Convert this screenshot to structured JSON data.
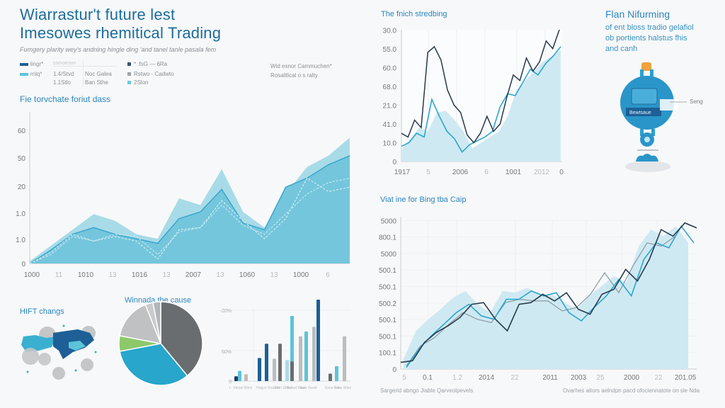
{
  "header": {
    "title_line1": "Wiarrastur't future lest",
    "title_line2": "Imesowes rhemitical Trading",
    "subtitle": "Fumgery plarity wey's andning hingle ding 'and tanel tanle pasala fem"
  },
  "legend": {
    "series": [
      {
        "label": "lingr*",
        "color": "#1d5f96"
      },
      {
        "label": "rnlq*",
        "color": "#5cc4d8"
      }
    ],
    "table_header": "ssmoeoon",
    "table_rows": [
      [
        "1.4/Stvd",
        "Noc Galea"
      ],
      [
        "1.1Stlo",
        "Ban Sthe"
      ]
    ],
    "markers": [
      {
        "label": "* .fsG — 6Ra",
        "color": "#3b5468"
      },
      {
        "label": "Rstwo - Cadwto",
        "color": "#9ea3a8"
      },
      {
        "label": "2Slon",
        "color": "#6ccbe0"
      }
    ],
    "notes": [
      "Wid esnor Cammuchen*",
      "Rosaltlical o s ralty"
    ]
  },
  "main_chart_title": "Fie torvchate foriut dass",
  "line_chart_1_title": "The fnich stredbing",
  "right_panel": {
    "title": "Flan Nifurming",
    "body_line1": "of ent bloss tradio gelafiol",
    "body_line2": "ob portients halstus fhis",
    "body_line3": "and canh",
    "device_label": "Bewtsaue",
    "callout_label": "Seng"
  },
  "line_chart_2_title": "Viat ine for Bing tba Caip",
  "map_title": "HIFT changs",
  "pie_title": "Winnada the cause",
  "footer": {
    "left_note": "Sargerid abngo Jiable Qarveolpevels",
    "right_note": "Ovarhes aitors aelndpn pacd ofociennatote on sle Nda"
  },
  "colors": {
    "accent": "#2a86bf",
    "dark_navy": "#1d3d5c",
    "teal": "#3ab0d0",
    "light_teal": "#a8dbe8",
    "gray": "#6a6d70"
  },
  "chart_data": [
    {
      "id": "area",
      "type": "area",
      "title": "Fie torvchate foriut dass",
      "xlabel": "",
      "ylabel": "",
      "x_tick_labels": [
        "1000",
        "11",
        "1010",
        "13",
        "1016",
        "13",
        "2007",
        "13",
        "1060",
        "13",
        "1000",
        "6"
      ],
      "y_tick_labels": [
        "0",
        "1.0",
        "1.0",
        "20",
        "50",
        "60"
      ],
      "ylim": [
        0,
        70
      ],
      "grid": false,
      "series": [
        {
          "name": "upper band",
          "values": [
            1,
            8,
            15,
            22,
            19,
            13,
            11,
            29,
            26,
            42,
            23,
            16,
            31,
            43,
            48,
            56
          ]
        },
        {
          "name": "main",
          "values": [
            0,
            6,
            13,
            16,
            13,
            11,
            9,
            20,
            23,
            33,
            18,
            15,
            34,
            38,
            44,
            48
          ]
        },
        {
          "name": "dashed a",
          "values": [
            0,
            5,
            13,
            10,
            12,
            10,
            2,
            15,
            16,
            28,
            19,
            11,
            20,
            38,
            32,
            34
          ]
        },
        {
          "name": "dashed b",
          "values": [
            0,
            4,
            12,
            10,
            13,
            12,
            4,
            14,
            16,
            26,
            17,
            13,
            22,
            31,
            36,
            38
          ]
        }
      ]
    },
    {
      "id": "line1",
      "type": "line",
      "title": "The fnich stredbing",
      "x_tick_labels": [
        "1917",
        "5",
        "2006",
        "6",
        "1001",
        "2012",
        "0"
      ],
      "y_tick_labels": [
        "0",
        "10.0",
        "41.0",
        "21.0",
        "68.0",
        "60.0",
        "55.0",
        "30.0"
      ],
      "ylim": [
        0,
        7
      ],
      "grid": true,
      "series": [
        {
          "name": "dark",
          "values": [
            1.5,
            1.3,
            2.2,
            1.8,
            5.8,
            6.1,
            5.4,
            3.8,
            3.0,
            2.6,
            1.4,
            1.0,
            1.5,
            2.4,
            1.6,
            2.0,
            3.4,
            4.6,
            4.3,
            5.5,
            4.8,
            5.3,
            6.4,
            6.0,
            7.0
          ]
        },
        {
          "name": "teal",
          "values": [
            0.8,
            1.0,
            1.5,
            1.3,
            3.3,
            2.4,
            1.6,
            1.2,
            0.5,
            0.9,
            1.1,
            1.3,
            1.6,
            2.9,
            3.6,
            3.5,
            4.2,
            4.9,
            4.6,
            5.2,
            5.6,
            6.1
          ]
        },
        {
          "name": "light",
          "values": [
            0.6,
            1.2,
            1.8,
            1.6,
            2.6,
            2.7,
            2.2,
            1.6,
            0.7,
            1.0,
            1.3,
            1.6,
            2.4,
            3.8,
            4.3,
            4.8,
            5.3,
            5.6,
            5.9
          ]
        }
      ]
    },
    {
      "id": "line2",
      "type": "line",
      "title": "Viat ine for Bing tba Caip",
      "x_tick_labels": [
        "5",
        "0.1",
        "1.2",
        "2014",
        "22",
        "2011",
        "2003",
        "25",
        "2000",
        "22",
        "201.05"
      ],
      "y_tick_labels": [
        "0",
        "100.1",
        "500.1",
        "500.1",
        "500.2",
        "500.1",
        "500.1",
        "5000",
        "800.1",
        "5000"
      ],
      "ylim": [
        0,
        9
      ],
      "grid": true,
      "series": [
        {
          "name": "dark",
          "values": [
            0.4,
            0.5,
            1.6,
            2.2,
            2.6,
            3.1,
            3.9,
            4.0,
            3.0,
            2.3,
            3.9,
            4.0,
            4.5,
            4.1,
            4.6,
            3.6,
            3.3,
            4.5,
            4.8,
            6.0,
            5.3,
            6.6,
            8.4,
            8.0,
            8.8,
            8.5
          ]
        },
        {
          "name": "teal",
          "values": [
            0.1,
            1.2,
            2.0,
            2.7,
            3.4,
            3.9,
            3.2,
            3.0,
            4.2,
            4.2,
            4.7,
            4.4,
            4.6,
            3.4,
            2.9,
            3.7,
            4.4,
            5.4,
            4.4,
            6.6,
            7.6,
            7.3,
            8.6,
            7.6
          ]
        },
        {
          "name": "gray",
          "values": [
            0.2,
            1.4,
            1.9,
            2.7,
            3.4,
            3.0,
            2.8,
            4.0,
            4.2,
            4.1,
            4.1,
            3.5,
            3.7,
            4.5,
            5.8,
            4.6,
            6.2,
            7.6,
            7.4,
            8.0
          ]
        }
      ]
    },
    {
      "id": "pie",
      "type": "pie",
      "title": "Winnada the cause",
      "slices": [
        {
          "label": "dark gray",
          "value": 39,
          "color": "#6a6d70"
        },
        {
          "label": "teal",
          "value": 33,
          "color": "#28a6cc"
        },
        {
          "label": "green",
          "value": 6,
          "color": "#8dc86a"
        },
        {
          "label": "light gray",
          "value": 16,
          "color": "#bfc1c3"
        },
        {
          "label": "gray small",
          "value": 3,
          "color": "#c9cbcd"
        },
        {
          "label": "gray small 2",
          "value": 3,
          "color": "#b3b6b9"
        }
      ]
    },
    {
      "id": "bars",
      "type": "bar",
      "title": "",
      "y_tick_labels": [
        "0",
        "60%",
        "-20%"
      ],
      "ylim": [
        0,
        120
      ],
      "categories": [
        "l - Steoel Rims",
        "Ylugyn Snalion",
        "Hdrr Ehtio",
        "Nsdud Waei",
        "lwer Seaol",
        "Enoe Erlo",
        "Seeo Wlen"
      ],
      "series": [
        {
          "name": "navy",
          "color": "#1d5f96",
          "values": [
            7,
            36,
            56,
            0,
            0,
            0,
            0
          ]
        },
        {
          "name": "teal",
          "color": "#5cc4d8",
          "values": [
            15,
            0,
            0,
            95,
            74,
            0,
            22
          ]
        },
        {
          "name": "light gray",
          "color": "#bbbdbf",
          "values": [
            10,
            34,
            0,
            0,
            81,
            0,
            66
          ]
        },
        {
          "name": "dark gray",
          "color": "#6a6d70",
          "values": [
            0,
            0,
            56,
            30,
            0,
            12,
            0
          ]
        },
        {
          "name": "extra",
          "color": "#a7dceb",
          "values": [
            0,
            0,
            32,
            66,
            120,
            0,
            0
          ]
        }
      ]
    }
  ]
}
